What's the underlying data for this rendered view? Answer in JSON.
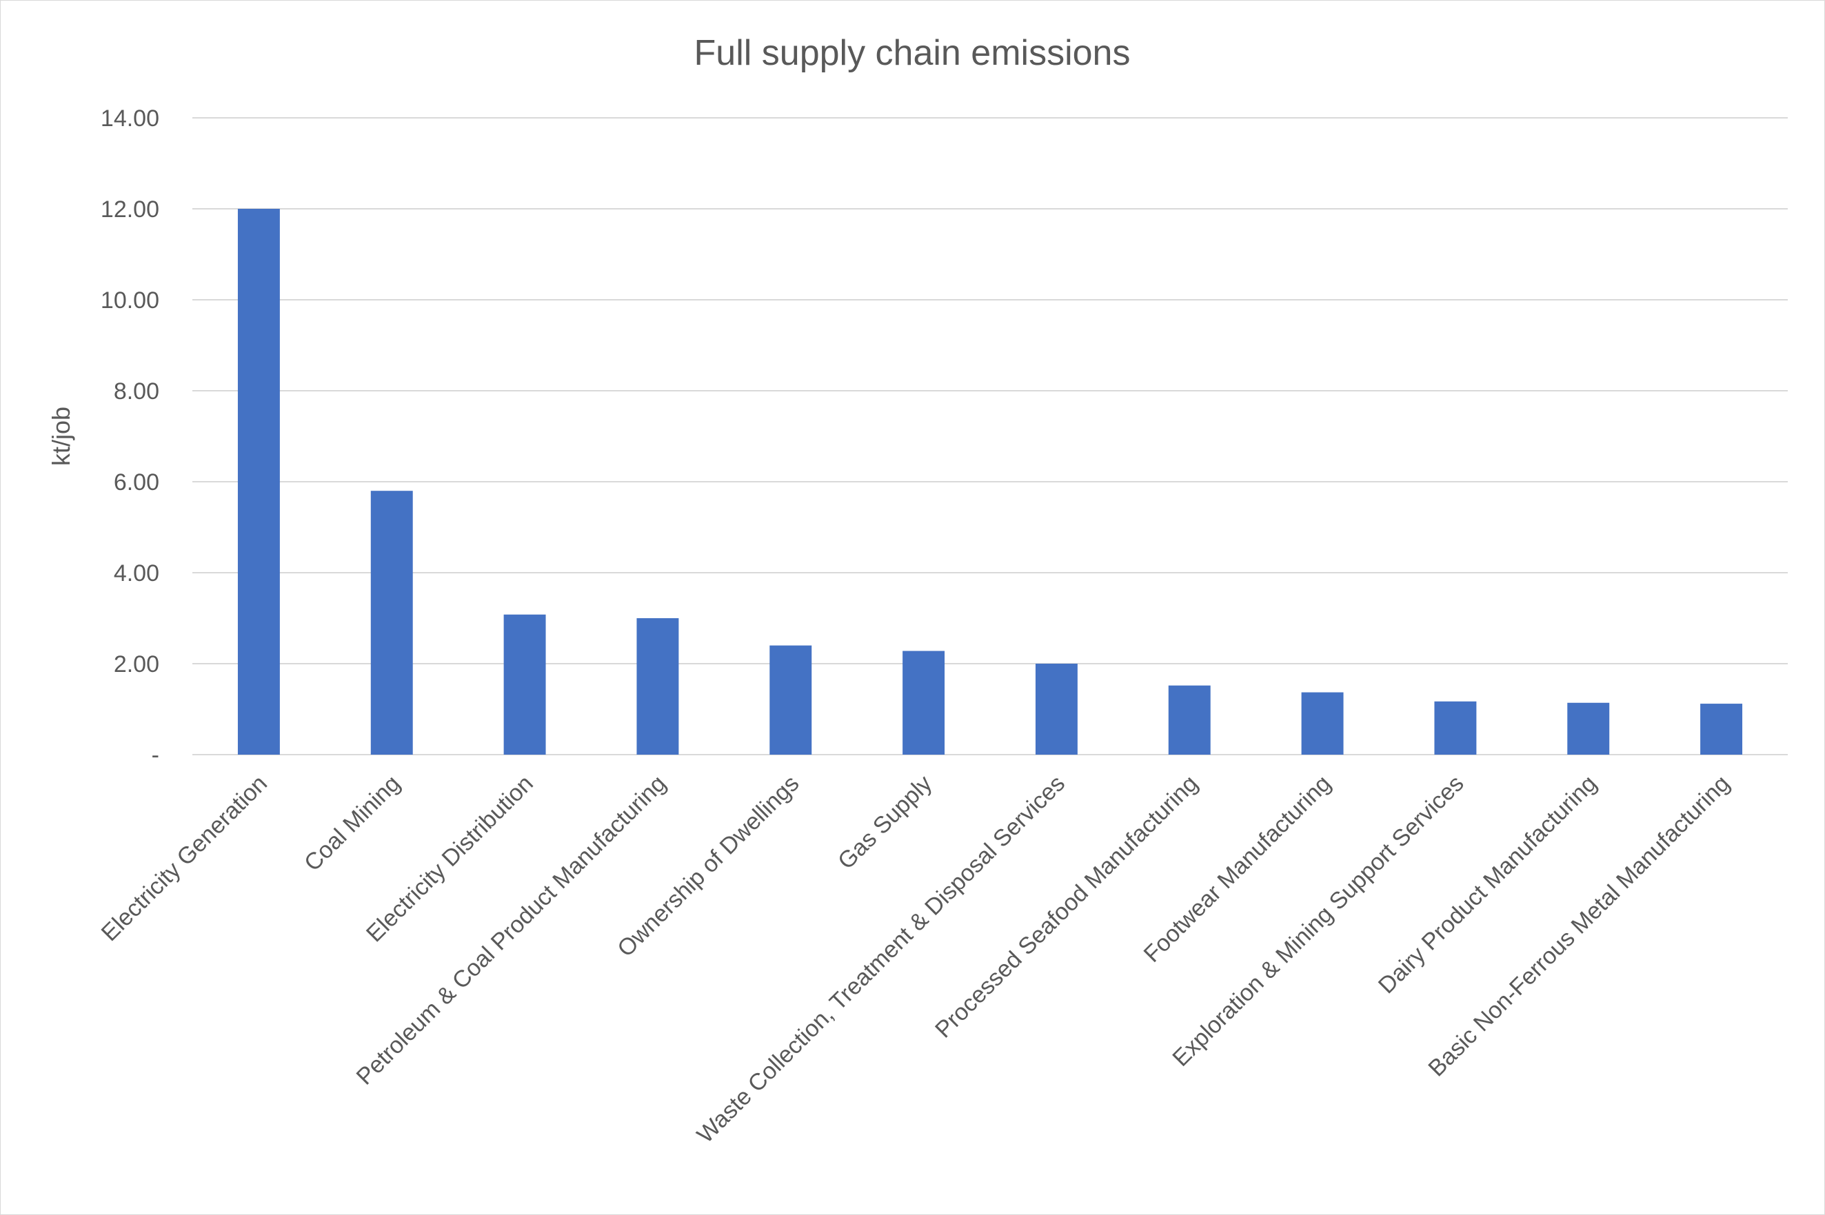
{
  "chart_data": {
    "type": "bar",
    "title": "Full supply chain emissions",
    "xlabel": "",
    "ylabel": "kt/job",
    "ylim": [
      0,
      14
    ],
    "yticks": [
      {
        "value": 0,
        "label": "-"
      },
      {
        "value": 2,
        "label": "2.00"
      },
      {
        "value": 4,
        "label": "4.00"
      },
      {
        "value": 6,
        "label": "6.00"
      },
      {
        "value": 8,
        "label": "8.00"
      },
      {
        "value": 10,
        "label": "10.00"
      },
      {
        "value": 12,
        "label": "12.00"
      },
      {
        "value": 14,
        "label": "14.00"
      }
    ],
    "grid": true,
    "legend": "none",
    "bar_color": "#4472C4",
    "categories": [
      "Electricity Generation",
      "Coal Mining",
      "Electricity Distribution",
      "Petroleum & Coal Product Manufacturing",
      "Ownership of Dwellings",
      "Gas Supply",
      "Waste Collection, Treatment & Disposal Services",
      "Processed Seafood Manufacturing",
      "Footwear Manufacturing",
      "Exploration & Mining Support Services",
      "Dairy Product Manufacturing",
      "Basic Non-Ferrous Metal Manufacturing"
    ],
    "values": [
      12.0,
      5.8,
      3.08,
      3.0,
      2.4,
      2.28,
      2.0,
      1.52,
      1.37,
      1.17,
      1.14,
      1.12
    ]
  }
}
